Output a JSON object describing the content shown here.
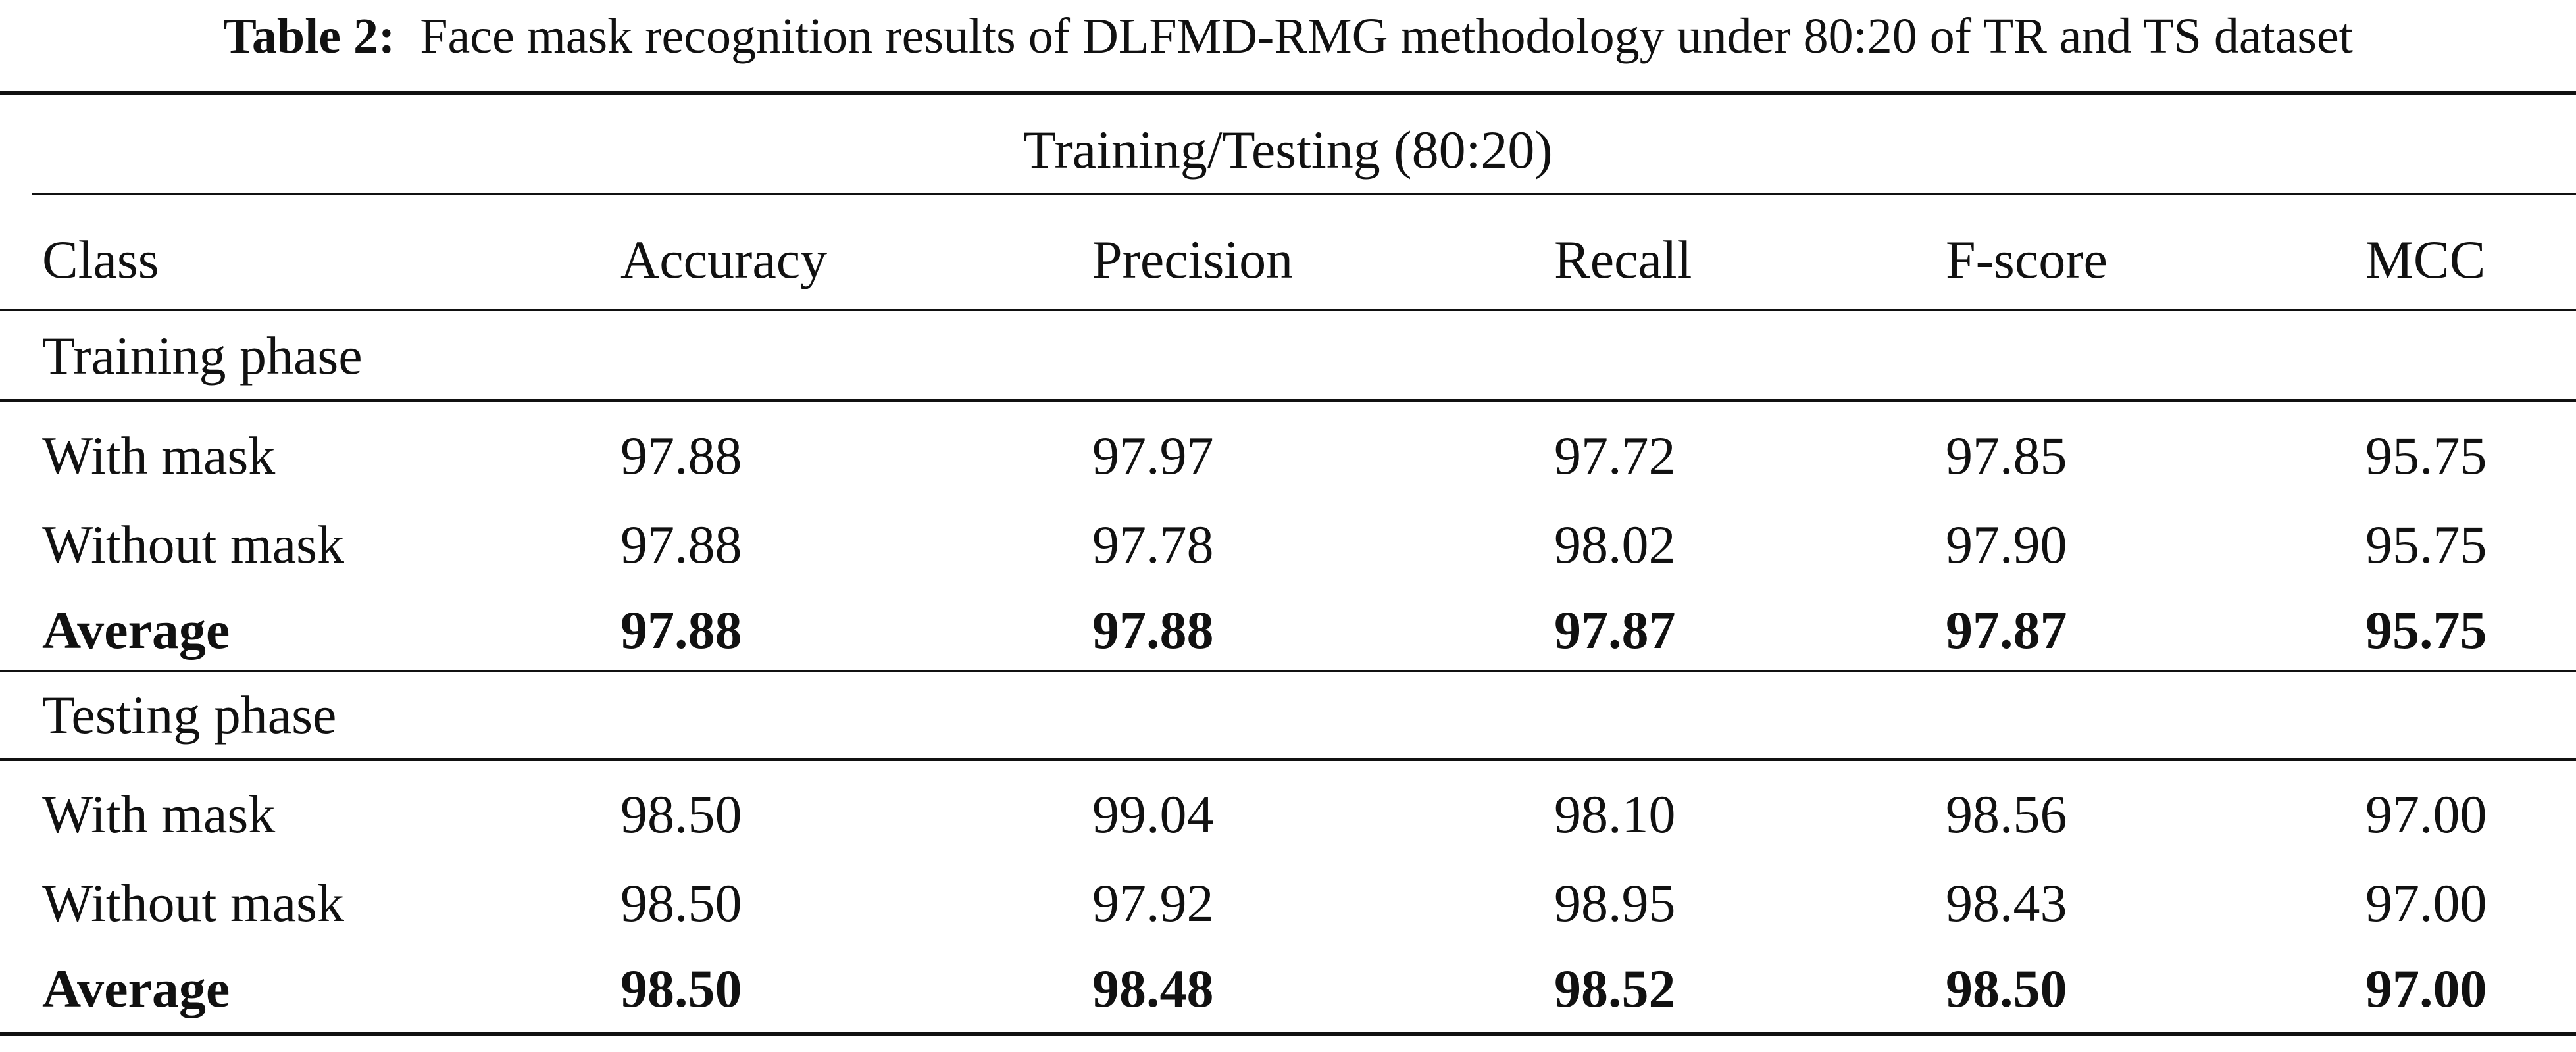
{
  "caption": {
    "label": "Table 2:",
    "text": "Face mask recognition results of DLFMD-RMG methodology under 80:20 of TR and TS dataset"
  },
  "table": {
    "span_header": "Training/Testing (80:20)",
    "columns": [
      "Class",
      "Accuracy",
      "Precision",
      "Recall",
      "F-score",
      "MCC"
    ],
    "sections": [
      {
        "title": "Training phase",
        "rows": [
          {
            "cells": [
              "With mask",
              "97.88",
              "97.97",
              "97.72",
              "97.85",
              "95.75"
            ],
            "bold": false
          },
          {
            "cells": [
              "Without mask",
              "97.88",
              "97.78",
              "98.02",
              "97.90",
              "95.75"
            ],
            "bold": false
          },
          {
            "cells": [
              "Average",
              "97.88",
              "97.88",
              "97.87",
              "97.87",
              "95.75"
            ],
            "bold": true
          }
        ]
      },
      {
        "title": "Testing phase",
        "rows": [
          {
            "cells": [
              "With mask",
              "98.50",
              "99.04",
              "98.10",
              "98.56",
              "97.00"
            ],
            "bold": false
          },
          {
            "cells": [
              "Without mask",
              "98.50",
              "97.92",
              "98.95",
              "98.43",
              "97.00"
            ],
            "bold": false
          },
          {
            "cells": [
              "Average",
              "98.50",
              "98.48",
              "98.52",
              "98.50",
              "97.00"
            ],
            "bold": true
          }
        ]
      }
    ]
  }
}
